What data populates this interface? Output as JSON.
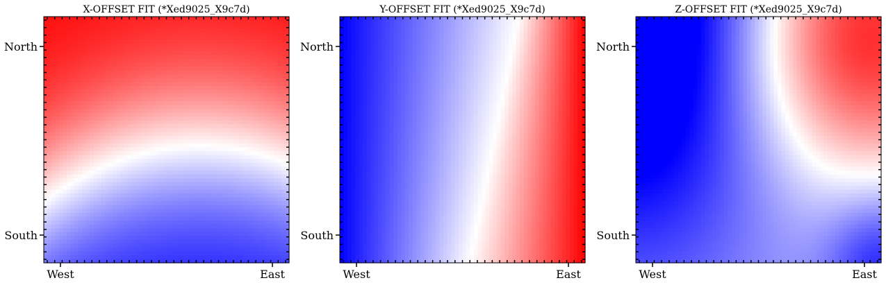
{
  "chart_data": [
    {
      "type": "heatmap",
      "title": "X-OFFSET FIT (*Xed9025_X9c7d)",
      "xticks": [
        "West",
        "East"
      ],
      "yticks": [
        "North",
        "South"
      ],
      "colormap": [
        "#0000ff",
        "#ffffff",
        "#ff0000"
      ],
      "pattern": "high toward north-west corner, low toward south-east corner, curved zero contour"
    },
    {
      "type": "heatmap",
      "title": "Y-OFFSET FIT (*Xed9025_X9c7d)",
      "xticks": [
        "West",
        "East"
      ],
      "yticks": [
        "North",
        "South"
      ],
      "colormap": [
        "#0000ff",
        "#ffffff",
        "#ff0000"
      ],
      "pattern": "low toward west, high toward east, slanted zero contour"
    },
    {
      "type": "heatmap",
      "title": "Z-OFFSET FIT (*Xed9025_X9c7d)",
      "xticks": [
        "West",
        "East"
      ],
      "yticks": [
        "North",
        "South"
      ],
      "colormap": [
        "#0000ff",
        "#ffffff",
        "#ff0000"
      ],
      "pattern": "low toward north-west, high lobe toward north-east, faint low toward south-east"
    }
  ]
}
